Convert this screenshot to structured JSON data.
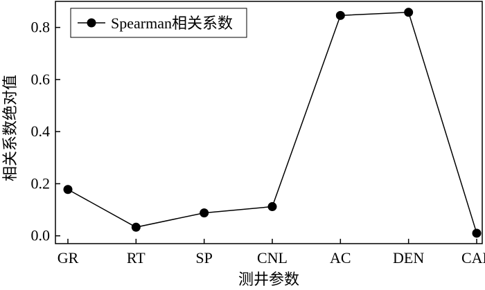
{
  "chart_data": {
    "type": "line",
    "categories": [
      "GR",
      "RT",
      "SP",
      "CNL",
      "AC",
      "DEN",
      "CAL"
    ],
    "series": [
      {
        "name": "Spearman相关系数",
        "values": [
          0.178,
          0.033,
          0.088,
          0.112,
          0.846,
          0.858,
          0.01
        ]
      }
    ],
    "xlabel": "测井参数",
    "ylabel": "相关系数绝对值",
    "ylim": [
      -0.03,
      0.9
    ],
    "yticks": [
      0.0,
      0.2,
      0.4,
      0.6,
      0.8
    ],
    "ytick_labels": [
      "0.0",
      "0.2",
      "0.4",
      "0.6",
      "0.8"
    ],
    "legend_position": "top-left",
    "grid": false,
    "colors": {
      "line": "#000000",
      "marker": "#000000",
      "axes": "#000000"
    }
  }
}
